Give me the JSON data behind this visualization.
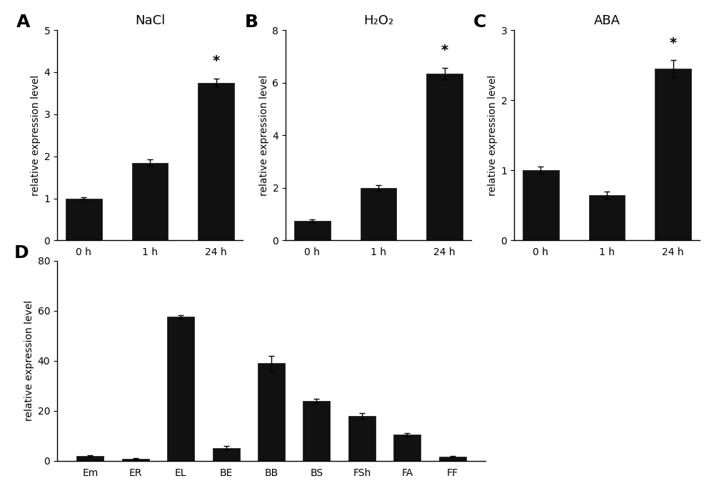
{
  "panel_A": {
    "title": "NaCl",
    "label": "A",
    "categories": [
      "0 h",
      "1 h",
      "24 h"
    ],
    "values": [
      1.0,
      1.85,
      3.75
    ],
    "errors": [
      0.03,
      0.08,
      0.1
    ],
    "ylim": [
      0,
      5
    ],
    "yticks": [
      0,
      1,
      2,
      3,
      4,
      5
    ],
    "sig_bar": [
      false,
      false,
      true
    ]
  },
  "panel_B": {
    "title": "H₂O₂",
    "label": "B",
    "categories": [
      "0 h",
      "1 h",
      "24 h"
    ],
    "values": [
      0.75,
      2.0,
      6.35
    ],
    "errors": [
      0.06,
      0.1,
      0.22
    ],
    "ylim": [
      0,
      8
    ],
    "yticks": [
      0,
      2,
      4,
      6,
      8
    ],
    "sig_bar": [
      false,
      false,
      true
    ]
  },
  "panel_C": {
    "title": "ABA",
    "label": "C",
    "categories": [
      "0 h",
      "1 h",
      "24 h"
    ],
    "values": [
      1.0,
      0.65,
      2.45
    ],
    "errors": [
      0.05,
      0.05,
      0.12
    ],
    "ylim": [
      0,
      3
    ],
    "yticks": [
      0,
      1,
      2,
      3
    ],
    "sig_bar": [
      false,
      false,
      true
    ]
  },
  "panel_D": {
    "label": "D",
    "categories": [
      "Em",
      "ER",
      "EL",
      "BE",
      "BB",
      "BS",
      "FSh",
      "FA",
      "FF"
    ],
    "values": [
      2.0,
      0.9,
      57.5,
      5.2,
      39.0,
      24.0,
      18.0,
      10.5,
      1.7
    ],
    "errors": [
      0.35,
      0.15,
      0.8,
      0.7,
      3.0,
      0.9,
      1.2,
      0.7,
      0.3
    ],
    "ylim": [
      0,
      80
    ],
    "yticks": [
      0,
      20,
      40,
      60,
      80
    ],
    "ylabel": "relative expression level"
  },
  "bar_color": "#111111",
  "ylabel": "relative expression level",
  "background_color": "#ffffff",
  "label_fontsize": 18,
  "title_fontsize": 13,
  "tick_fontsize": 10,
  "ylabel_fontsize": 10
}
